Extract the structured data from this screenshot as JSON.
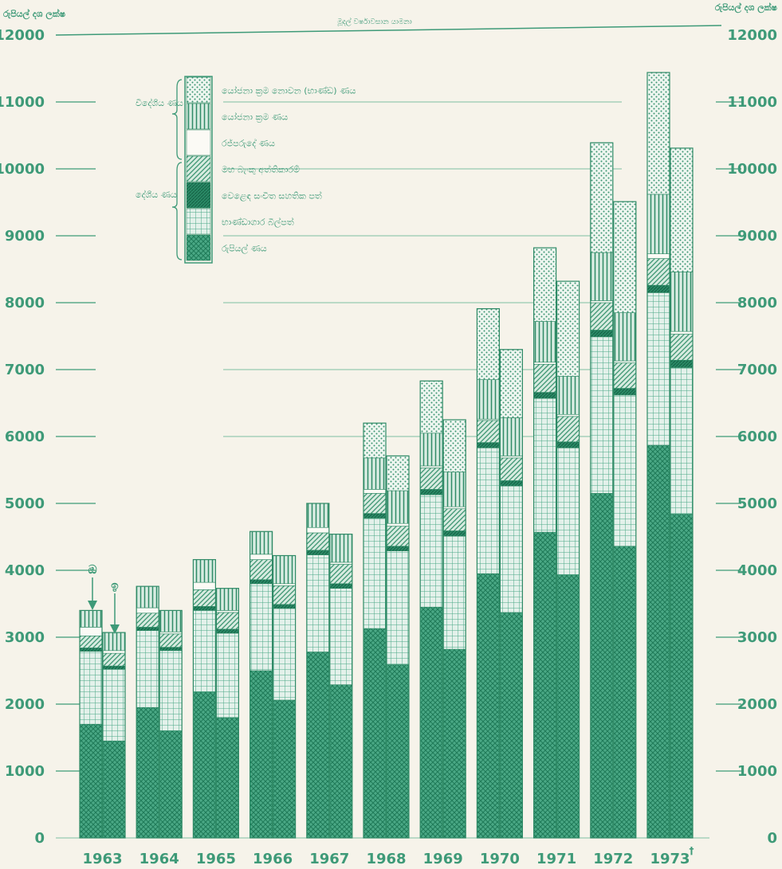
{
  "chart_data": {
    "type": "bar",
    "stacked": true,
    "title": "මූදල් වර්ෂාවසාන යාමනා",
    "ylabel_left": "රුපියල් දශ ලක්ෂ",
    "ylabel_right": "රුපියල් දශ ලක්ෂ",
    "ylim": [
      0,
      12000
    ],
    "yticks": [
      "0",
      "1000",
      "2000",
      "3000",
      "4000",
      "5000",
      "6000",
      "7000",
      "8000",
      "9000",
      "10000",
      "11000",
      "12000"
    ],
    "categories": [
      "1963",
      "1964",
      "1965",
      "1966",
      "1967",
      "1968",
      "1969",
      "1970",
      "1971",
      "1972",
      "1973"
    ],
    "year_suffix_1973": "†",
    "bars_per_year": 2,
    "annotation_first_bar": "ඔ",
    "annotation_second_bar": "ඉ",
    "legend_group_foreign": "විදේශීය ණය",
    "legend_group_domestic": "දේශීය ණය",
    "legend_position": "top-left",
    "series": [
      {
        "name": "රුපියල් ණය",
        "group": "domestic",
        "pattern": "dense-crosshatch",
        "values": [
          [
            1700,
            1450
          ],
          [
            1950,
            1600
          ],
          [
            2180,
            1800
          ],
          [
            2500,
            2060
          ],
          [
            2780,
            2290
          ],
          [
            3130,
            2590
          ],
          [
            3450,
            2820
          ],
          [
            3950,
            3370
          ],
          [
            4570,
            3930
          ],
          [
            5150,
            4360
          ],
          [
            5870,
            4840
          ]
        ]
      },
      {
        "name": "භාණ්ඩාගාර බිල්පත්",
        "group": "domestic",
        "pattern": "grid",
        "values": [
          [
            1090,
            1070
          ],
          [
            1150,
            1200
          ],
          [
            1220,
            1260
          ],
          [
            1300,
            1370
          ],
          [
            1450,
            1440
          ],
          [
            1650,
            1700
          ],
          [
            1680,
            1690
          ],
          [
            1880,
            1890
          ],
          [
            2000,
            1900
          ],
          [
            2340,
            2260
          ],
          [
            2280,
            2190
          ]
        ]
      },
      {
        "name": "වෙළෙඳ සංචිත සහතික පත්",
        "group": "domestic",
        "pattern": "dark-hatch",
        "values": [
          [
            50,
            50
          ],
          [
            50,
            50
          ],
          [
            60,
            60
          ],
          [
            60,
            60
          ],
          [
            70,
            70
          ],
          [
            70,
            70
          ],
          [
            80,
            80
          ],
          [
            80,
            80
          ],
          [
            90,
            90
          ],
          [
            100,
            100
          ],
          [
            110,
            110
          ]
        ]
      },
      {
        "name": "මහ බැංකු අත්තිකාරම්",
        "group": "domestic",
        "pattern": "diagonal",
        "values": [
          [
            180,
            190
          ],
          [
            210,
            200
          ],
          [
            250,
            250
          ],
          [
            300,
            280
          ],
          [
            260,
            290
          ],
          [
            300,
            300
          ],
          [
            320,
            330
          ],
          [
            330,
            340
          ],
          [
            420,
            380
          ],
          [
            410,
            380
          ],
          [
            400,
            390
          ]
        ]
      },
      {
        "name": "රජ්පරුදේ ණය",
        "group": "foreign",
        "pattern": "plain",
        "values": [
          [
            130,
            40
          ],
          [
            80,
            30
          ],
          [
            110,
            30
          ],
          [
            80,
            30
          ],
          [
            80,
            30
          ],
          [
            60,
            40
          ],
          [
            30,
            30
          ],
          [
            20,
            30
          ],
          [
            30,
            30
          ],
          [
            30,
            30
          ],
          [
            70,
            40
          ]
        ]
      },
      {
        "name": "යෝජනා ක්‍රම ණය",
        "group": "foreign",
        "pattern": "vertical-lines",
        "values": [
          [
            250,
            270
          ],
          [
            320,
            320
          ],
          [
            340,
            330
          ],
          [
            340,
            420
          ],
          [
            360,
            420
          ],
          [
            470,
            490
          ],
          [
            490,
            520
          ],
          [
            590,
            570
          ],
          [
            610,
            570
          ],
          [
            720,
            720
          ],
          [
            890,
            890
          ]
        ]
      },
      {
        "name": "යෝජනා ක්‍රම නොවන (භාණ්ඩ) ණය",
        "group": "foreign",
        "pattern": "dots",
        "values": [
          [
            0,
            0
          ],
          [
            0,
            0
          ],
          [
            0,
            0
          ],
          [
            0,
            0
          ],
          [
            0,
            0
          ],
          [
            520,
            520
          ],
          [
            780,
            780
          ],
          [
            1060,
            1020
          ],
          [
            1100,
            1420
          ],
          [
            1640,
            1660
          ],
          [
            1820,
            1850
          ]
        ]
      }
    ]
  }
}
